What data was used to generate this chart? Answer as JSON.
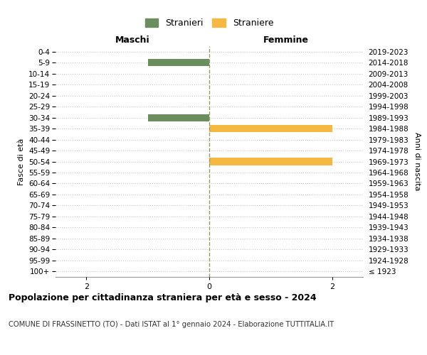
{
  "age_groups": [
    "100+",
    "95-99",
    "90-94",
    "85-89",
    "80-84",
    "75-79",
    "70-74",
    "65-69",
    "60-64",
    "55-59",
    "50-54",
    "45-49",
    "40-44",
    "35-39",
    "30-34",
    "25-29",
    "20-24",
    "15-19",
    "10-14",
    "5-9",
    "0-4"
  ],
  "birth_years": [
    "≤ 1923",
    "1924-1928",
    "1929-1933",
    "1934-1938",
    "1939-1943",
    "1944-1948",
    "1949-1953",
    "1954-1958",
    "1959-1963",
    "1964-1968",
    "1969-1973",
    "1974-1978",
    "1979-1983",
    "1984-1988",
    "1989-1993",
    "1994-1998",
    "1999-2003",
    "2004-2008",
    "2009-2013",
    "2014-2018",
    "2019-2023"
  ],
  "males": [
    0,
    0,
    0,
    0,
    0,
    0,
    0,
    0,
    0,
    0,
    0,
    0,
    0,
    0,
    1,
    0,
    0,
    0,
    0,
    1,
    0
  ],
  "females": [
    0,
    0,
    0,
    0,
    0,
    0,
    0,
    0,
    0,
    0,
    2,
    0,
    0,
    2,
    0,
    0,
    0,
    0,
    0,
    0,
    0
  ],
  "male_color": "#6B8E5E",
  "female_color": "#F5B942",
  "xlim": 2.5,
  "xlabel_left": "Maschi",
  "xlabel_right": "Femmine",
  "ylabel_left": "Fasce di età",
  "ylabel_right": "Anni di nascita",
  "legend_male": "Stranieri",
  "legend_female": "Straniere",
  "title": "Popolazione per cittadinanza straniera per età e sesso - 2024",
  "subtitle": "COMUNE DI FRASSINETTO (TO) - Dati ISTAT al 1° gennaio 2024 - Elaborazione TUTTITALIA.IT",
  "bg_color": "#ffffff",
  "grid_color": "#cccccc",
  "center_line_color": "#999966"
}
